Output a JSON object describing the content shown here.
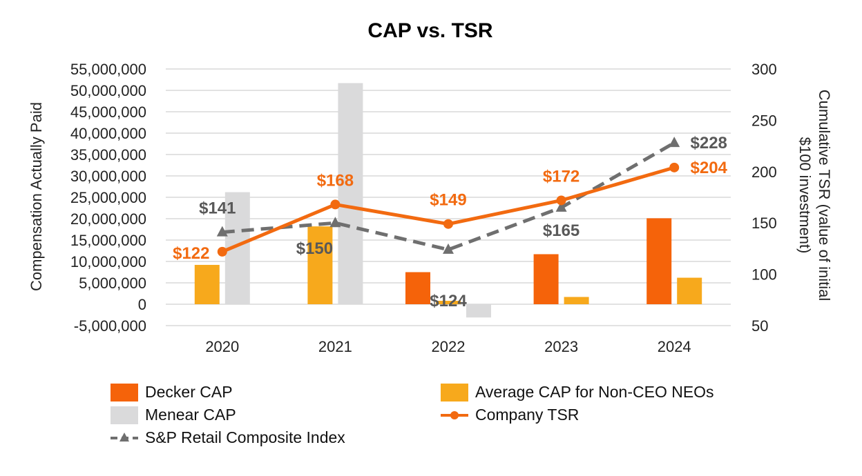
{
  "chart_data": {
    "type": "bar+line",
    "title": "CAP vs. TSR",
    "categories": [
      "2020",
      "2021",
      "2022",
      "2023",
      "2024"
    ],
    "ylabel_left": "Compensation Actually Paid",
    "ylabel_right_lines": [
      "Cumulative TSR (value of initial",
      "$100 investment)"
    ],
    "ylim_left": [
      -5000000,
      55000000
    ],
    "yticks_left": [
      -5000000,
      0,
      5000000,
      10000000,
      15000000,
      20000000,
      25000000,
      30000000,
      35000000,
      40000000,
      45000000,
      50000000,
      55000000
    ],
    "ytick_labels_left": [
      "-5,000,000",
      "0",
      "5,000,000",
      "10,000,000",
      "15,000,000",
      "20,000,000",
      "25,000,000",
      "30,000,000",
      "35,000,000",
      "40,000,000",
      "45,000,000",
      "50,000,000",
      "55,000,000"
    ],
    "ylim_right": [
      50,
      300
    ],
    "yticks_right": [
      50,
      100,
      150,
      200,
      250,
      300
    ],
    "grid": true,
    "bar_series": [
      {
        "name": "Decker CAP",
        "color": "#f5630a",
        "values": [
          null,
          null,
          7500000,
          11700000,
          20100000
        ]
      },
      {
        "name": "Average CAP for Non-CEO NEOs",
        "color": "#f7a91c",
        "values": [
          9200000,
          18200000,
          800000,
          1700000,
          6200000
        ]
      },
      {
        "name": "Menear CAP",
        "color": "#dadadb",
        "values": [
          26200000,
          51700000,
          -3100000,
          null,
          null
        ]
      }
    ],
    "line_series": [
      {
        "name": "Company TSR",
        "color": "#f26a10",
        "style": "solid",
        "marker": "circle",
        "values": [
          122,
          168,
          149,
          172,
          204
        ],
        "labels": [
          "$122",
          "$168",
          "$149",
          "$172",
          "$204"
        ]
      },
      {
        "name": "S&P Retail Composite Index",
        "color": "#6f6f6f",
        "style": "dashed",
        "marker": "triangle",
        "values": [
          141,
          150,
          124,
          165,
          228
        ],
        "labels": [
          "$141",
          "$150",
          "$124",
          "$165",
          "$228"
        ]
      }
    ],
    "legend": [
      "Decker CAP",
      "Average CAP for Non-CEO NEOs",
      "Menear CAP",
      "Company TSR",
      "S&P Retail Composite Index"
    ]
  }
}
